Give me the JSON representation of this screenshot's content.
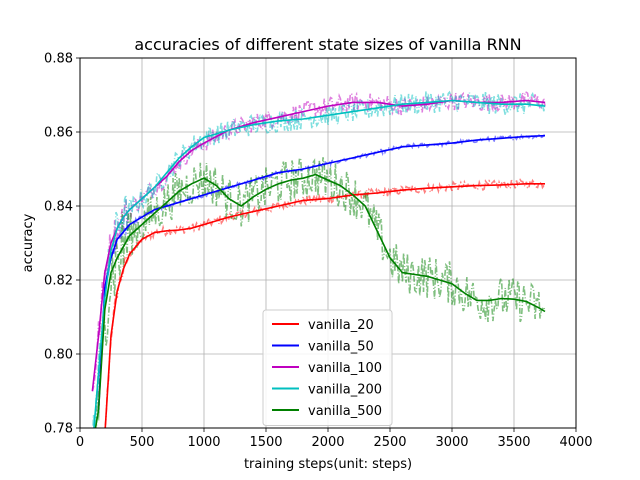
{
  "chart_data": {
    "type": "line",
    "title": "accuracies of different state sizes of vanilla RNN",
    "xlabel": "training steps(unit: steps)",
    "ylabel": "accuracy",
    "xlim": [
      0,
      4000
    ],
    "ylim": [
      0.78,
      0.88
    ],
    "xticks": [
      0,
      500,
      1000,
      1500,
      2000,
      2500,
      3000,
      3500,
      4000
    ],
    "xtick_labels": [
      "0",
      "500",
      "1000",
      "1500",
      "2000",
      "2500",
      "3000",
      "3500",
      "4000"
    ],
    "yticks": [
      0.78,
      0.8,
      0.82,
      0.84,
      0.86,
      0.88
    ],
    "ytick_labels": [
      "0.78",
      "0.80",
      "0.82",
      "0.84",
      "0.86",
      "0.88"
    ],
    "grid": true,
    "legend_position": "lower-center",
    "series": [
      {
        "name": "vanilla_20",
        "color": "#ff0000",
        "raw_noise": 0.0012,
        "x": [
          100,
          150,
          200,
          250,
          300,
          350,
          400,
          500,
          600,
          700,
          800,
          900,
          1000,
          1200,
          1400,
          1600,
          1800,
          2000,
          2200,
          2400,
          2600,
          2800,
          3000,
          3200,
          3400,
          3600,
          3750
        ],
        "y": [
          0.77,
          0.772,
          0.778,
          0.805,
          0.817,
          0.823,
          0.827,
          0.831,
          0.8328,
          0.8333,
          0.8335,
          0.834,
          0.835,
          0.837,
          0.8385,
          0.84,
          0.8415,
          0.842,
          0.843,
          0.8435,
          0.8443,
          0.8448,
          0.8452,
          0.8455,
          0.8457,
          0.846,
          0.846
        ]
      },
      {
        "name": "vanilla_50",
        "color": "#0000ff",
        "raw_noise": 0.0006,
        "x": [
          150,
          200,
          250,
          300,
          350,
          400,
          500,
          600,
          800,
          1000,
          1200,
          1400,
          1600,
          1800,
          2000,
          2200,
          2400,
          2600,
          2800,
          3000,
          3200,
          3400,
          3600,
          3750
        ],
        "y": [
          0.785,
          0.818,
          0.826,
          0.831,
          0.833,
          0.835,
          0.837,
          0.839,
          0.841,
          0.843,
          0.845,
          0.847,
          0.849,
          0.85,
          0.8515,
          0.853,
          0.8545,
          0.856,
          0.8565,
          0.857,
          0.8578,
          0.8583,
          0.8588,
          0.859
        ]
      },
      {
        "name": "vanilla_100",
        "color": "#bf00bf",
        "raw_noise": 0.0025,
        "x": [
          100,
          150,
          200,
          250,
          300,
          350,
          400,
          500,
          600,
          700,
          800,
          900,
          1000,
          1200,
          1400,
          1600,
          1800,
          2000,
          2200,
          2400,
          2600,
          2800,
          3000,
          3200,
          3400,
          3600,
          3750
        ],
        "y": [
          0.79,
          0.805,
          0.822,
          0.83,
          0.834,
          0.837,
          0.839,
          0.842,
          0.845,
          0.848,
          0.852,
          0.855,
          0.857,
          0.8605,
          0.8625,
          0.864,
          0.8655,
          0.867,
          0.868,
          0.868,
          0.867,
          0.8675,
          0.8685,
          0.868,
          0.868,
          0.8685,
          0.868
        ]
      },
      {
        "name": "vanilla_200",
        "color": "#00bfbf",
        "raw_noise": 0.003,
        "x": [
          100,
          150,
          200,
          250,
          300,
          350,
          400,
          500,
          600,
          700,
          800,
          900,
          1000,
          1200,
          1400,
          1600,
          1800,
          2000,
          2200,
          2400,
          2600,
          2800,
          3000,
          3200,
          3400,
          3600,
          3750
        ],
        "y": [
          0.775,
          0.795,
          0.815,
          0.828,
          0.834,
          0.837,
          0.839,
          0.842,
          0.845,
          0.849,
          0.853,
          0.856,
          0.8585,
          0.8605,
          0.862,
          0.863,
          0.8635,
          0.8645,
          0.8655,
          0.8665,
          0.8675,
          0.868,
          0.8685,
          0.868,
          0.8675,
          0.8675,
          0.867
        ]
      },
      {
        "name": "vanilla_500",
        "color": "#008000",
        "raw_noise": 0.006,
        "x": [
          100,
          150,
          200,
          250,
          300,
          350,
          400,
          500,
          600,
          700,
          800,
          900,
          1000,
          1100,
          1200,
          1300,
          1400,
          1500,
          1600,
          1700,
          1800,
          1900,
          2000,
          2100,
          2200,
          2300,
          2400,
          2500,
          2600,
          2700,
          2800,
          2900,
          3000,
          3100,
          3200,
          3300,
          3400,
          3500,
          3600,
          3700,
          3750
        ],
        "y": [
          0.775,
          0.785,
          0.812,
          0.822,
          0.826,
          0.829,
          0.832,
          0.835,
          0.838,
          0.841,
          0.844,
          0.846,
          0.8475,
          0.8455,
          0.842,
          0.84,
          0.8425,
          0.8445,
          0.846,
          0.847,
          0.8475,
          0.8485,
          0.847,
          0.8455,
          0.843,
          0.84,
          0.833,
          0.826,
          0.822,
          0.8215,
          0.821,
          0.82,
          0.819,
          0.8165,
          0.8145,
          0.8145,
          0.815,
          0.8148,
          0.8142,
          0.8125,
          0.8115
        ]
      }
    ]
  }
}
